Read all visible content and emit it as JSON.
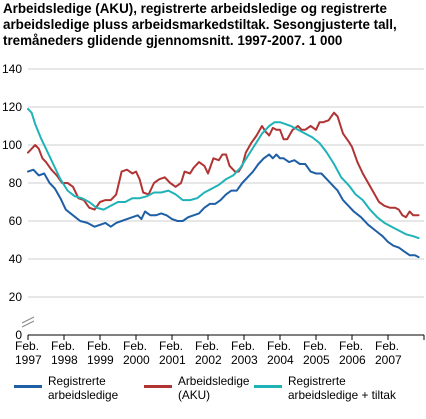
{
  "title_lines": [
    "Arbeidsledige (AKU), registrerte arbeidsledige og registrerte",
    "arbeidsledige pluss arbeidsmarkedstiltak. Sesongjusterte tall,",
    "tremåneders glidende gjennomsnitt. 1997-2007. 1 000"
  ],
  "legend": [
    {
      "lines": [
        "Registrerte",
        "arbeidsledige"
      ]
    },
    {
      "lines": [
        "Arbeidsledige",
        "(AKU)"
      ]
    },
    {
      "lines": [
        "Registrerte",
        "arbeidsledige  + tiltak"
      ]
    }
  ],
  "chart_data": {
    "type": "line",
    "title": "Arbeidsledige (AKU), registrerte arbeidsledige og registrerte arbeidsledige pluss arbeidsmarkedstiltak. Sesongjusterte tall, tremåneders glidende gjennomsnitt. 1997-2007. 1 000",
    "xlabel": "",
    "ylabel": "",
    "ylim": [
      0,
      140
    ],
    "yticks": [
      0,
      20,
      40,
      60,
      80,
      100,
      120,
      140
    ],
    "xlim": [
      1997.0,
      2008.0
    ],
    "xticks": [
      {
        "x": 1997,
        "line1": "Feb.",
        "line2": "1997"
      },
      {
        "x": 1998,
        "line1": "Feb.",
        "line2": "1998"
      },
      {
        "x": 1999,
        "line1": "Feb.",
        "line2": "1999"
      },
      {
        "x": 2000,
        "line1": "Feb.",
        "line2": "2000"
      },
      {
        "x": 2001,
        "line1": "Feb.",
        "line2": "2001"
      },
      {
        "x": 2002,
        "line1": "Feb.",
        "line2": "2002"
      },
      {
        "x": 2003,
        "line1": "Feb.",
        "line2": "2003"
      },
      {
        "x": 2004,
        "line1": "Feb.",
        "line2": "2004"
      },
      {
        "x": 2005,
        "line1": "Feb.",
        "line2": "2005"
      },
      {
        "x": 2006,
        "line1": "Feb.",
        "line2": "2006"
      },
      {
        "x": 2007,
        "line1": "Feb.",
        "line2": "2007"
      }
    ],
    "grid": true,
    "axis_break": true,
    "series": [
      {
        "name": "Registrerte arbeidsledige",
        "color": "#1f5fa6",
        "points": [
          [
            1997.0,
            86
          ],
          [
            1997.15,
            87
          ],
          [
            1997.3,
            84
          ],
          [
            1997.45,
            85
          ],
          [
            1997.6,
            80
          ],
          [
            1997.75,
            77
          ],
          [
            1997.9,
            72
          ],
          [
            1998.05,
            66
          ],
          [
            1998.25,
            63
          ],
          [
            1998.45,
            60
          ],
          [
            1998.65,
            59
          ],
          [
            1998.85,
            57
          ],
          [
            1999.0,
            58
          ],
          [
            1999.15,
            59
          ],
          [
            1999.3,
            57
          ],
          [
            1999.45,
            59
          ],
          [
            1999.6,
            60
          ],
          [
            1999.75,
            61
          ],
          [
            1999.9,
            62
          ],
          [
            2000.05,
            63
          ],
          [
            2000.15,
            61
          ],
          [
            2000.25,
            65
          ],
          [
            2000.4,
            63
          ],
          [
            2000.55,
            63
          ],
          [
            2000.7,
            64
          ],
          [
            2000.85,
            63
          ],
          [
            2001.0,
            61
          ],
          [
            2001.15,
            60
          ],
          [
            2001.3,
            60
          ],
          [
            2001.45,
            62
          ],
          [
            2001.6,
            63
          ],
          [
            2001.75,
            64
          ],
          [
            2001.9,
            67
          ],
          [
            2002.05,
            69
          ],
          [
            2002.2,
            69
          ],
          [
            2002.35,
            71
          ],
          [
            2002.5,
            74
          ],
          [
            2002.65,
            76
          ],
          [
            2002.8,
            76
          ],
          [
            2002.95,
            80
          ],
          [
            2003.1,
            83
          ],
          [
            2003.25,
            86
          ],
          [
            2003.4,
            90
          ],
          [
            2003.55,
            93
          ],
          [
            2003.7,
            95
          ],
          [
            2003.8,
            93
          ],
          [
            2003.9,
            95
          ],
          [
            2004.0,
            93
          ],
          [
            2004.1,
            93
          ],
          [
            2004.25,
            91
          ],
          [
            2004.4,
            92
          ],
          [
            2004.55,
            90
          ],
          [
            2004.7,
            90
          ],
          [
            2004.85,
            86
          ],
          [
            2005.0,
            85
          ],
          [
            2005.15,
            85
          ],
          [
            2005.3,
            82
          ],
          [
            2005.45,
            79
          ],
          [
            2005.6,
            76
          ],
          [
            2005.75,
            71
          ],
          [
            2005.9,
            68
          ],
          [
            2006.05,
            65
          ],
          [
            2006.25,
            62
          ],
          [
            2006.45,
            58
          ],
          [
            2006.65,
            55
          ],
          [
            2006.85,
            52
          ],
          [
            2007.0,
            49
          ],
          [
            2007.15,
            47
          ],
          [
            2007.3,
            46
          ],
          [
            2007.45,
            44
          ],
          [
            2007.6,
            42
          ],
          [
            2007.75,
            42
          ],
          [
            2007.85,
            41
          ]
        ]
      },
      {
        "name": "Arbeidsledige (AKU)",
        "color": "#b03434",
        "points": [
          [
            1997.0,
            96
          ],
          [
            1997.1,
            98
          ],
          [
            1997.2,
            100
          ],
          [
            1997.3,
            98
          ],
          [
            1997.4,
            93
          ],
          [
            1997.5,
            91
          ],
          [
            1997.65,
            87
          ],
          [
            1997.8,
            84
          ],
          [
            1997.95,
            80
          ],
          [
            1998.1,
            80
          ],
          [
            1998.25,
            78
          ],
          [
            1998.4,
            72
          ],
          [
            1998.55,
            71
          ],
          [
            1998.7,
            67
          ],
          [
            1998.85,
            66
          ],
          [
            1999.0,
            70
          ],
          [
            1999.15,
            71
          ],
          [
            1999.3,
            71
          ],
          [
            1999.45,
            74
          ],
          [
            1999.6,
            86
          ],
          [
            1999.75,
            87
          ],
          [
            1999.9,
            85
          ],
          [
            2000.0,
            86
          ],
          [
            2000.1,
            82
          ],
          [
            2000.2,
            75
          ],
          [
            2000.35,
            74
          ],
          [
            2000.5,
            80
          ],
          [
            2000.65,
            82
          ],
          [
            2000.8,
            83
          ],
          [
            2000.95,
            80
          ],
          [
            2001.1,
            78
          ],
          [
            2001.25,
            80
          ],
          [
            2001.35,
            86
          ],
          [
            2001.5,
            85
          ],
          [
            2001.6,
            88
          ],
          [
            2001.75,
            91
          ],
          [
            2001.9,
            89
          ],
          [
            2002.0,
            85
          ],
          [
            2002.15,
            93
          ],
          [
            2002.3,
            92
          ],
          [
            2002.4,
            95
          ],
          [
            2002.5,
            95
          ],
          [
            2002.6,
            89
          ],
          [
            2002.75,
            86
          ],
          [
            2002.85,
            86
          ],
          [
            2002.95,
            89
          ],
          [
            2003.05,
            96
          ],
          [
            2003.2,
            101
          ],
          [
            2003.35,
            105
          ],
          [
            2003.5,
            110
          ],
          [
            2003.6,
            107
          ],
          [
            2003.7,
            105
          ],
          [
            2003.8,
            109
          ],
          [
            2003.9,
            108
          ],
          [
            2004.0,
            108
          ],
          [
            2004.1,
            103
          ],
          [
            2004.2,
            103
          ],
          [
            2004.35,
            108
          ],
          [
            2004.5,
            110
          ],
          [
            2004.6,
            108
          ],
          [
            2004.7,
            108
          ],
          [
            2004.85,
            110
          ],
          [
            2005.0,
            108
          ],
          [
            2005.1,
            112
          ],
          [
            2005.2,
            112
          ],
          [
            2005.35,
            113
          ],
          [
            2005.5,
            117
          ],
          [
            2005.6,
            115
          ],
          [
            2005.75,
            106
          ],
          [
            2005.9,
            102
          ],
          [
            2006.0,
            99
          ],
          [
            2006.15,
            91
          ],
          [
            2006.3,
            85
          ],
          [
            2006.45,
            80
          ],
          [
            2006.6,
            75
          ],
          [
            2006.75,
            70
          ],
          [
            2006.9,
            68
          ],
          [
            2007.05,
            67
          ],
          [
            2007.2,
            67
          ],
          [
            2007.3,
            66
          ],
          [
            2007.4,
            63
          ],
          [
            2007.5,
            62
          ],
          [
            2007.6,
            65
          ],
          [
            2007.7,
            63
          ],
          [
            2007.85,
            63
          ]
        ]
      },
      {
        "name": "Registrerte arbeidsledige  + tiltak",
        "color": "#1fb3b8",
        "points": [
          [
            1997.0,
            119
          ],
          [
            1997.1,
            117
          ],
          [
            1997.2,
            111
          ],
          [
            1997.35,
            104
          ],
          [
            1997.5,
            98
          ],
          [
            1997.7,
            90
          ],
          [
            1997.9,
            82
          ],
          [
            1998.1,
            76
          ],
          [
            1998.3,
            73
          ],
          [
            1998.5,
            72
          ],
          [
            1998.7,
            70
          ],
          [
            1998.9,
            67
          ],
          [
            1999.1,
            66
          ],
          [
            1999.3,
            68
          ],
          [
            1999.5,
            70
          ],
          [
            1999.7,
            70
          ],
          [
            1999.9,
            72
          ],
          [
            2000.1,
            72
          ],
          [
            2000.3,
            73
          ],
          [
            2000.5,
            75
          ],
          [
            2000.7,
            75
          ],
          [
            2000.9,
            76
          ],
          [
            2001.1,
            74
          ],
          [
            2001.3,
            71
          ],
          [
            2001.5,
            71
          ],
          [
            2001.7,
            72
          ],
          [
            2001.9,
            75
          ],
          [
            2002.1,
            77
          ],
          [
            2002.3,
            79
          ],
          [
            2002.5,
            82
          ],
          [
            2002.7,
            84
          ],
          [
            2002.9,
            88
          ],
          [
            2003.1,
            94
          ],
          [
            2003.3,
            100
          ],
          [
            2003.5,
            106
          ],
          [
            2003.7,
            110
          ],
          [
            2003.85,
            112
          ],
          [
            2004.0,
            112
          ],
          [
            2004.15,
            111
          ],
          [
            2004.3,
            110
          ],
          [
            2004.5,
            108
          ],
          [
            2004.7,
            106
          ],
          [
            2004.9,
            104
          ],
          [
            2005.1,
            101
          ],
          [
            2005.3,
            96
          ],
          [
            2005.5,
            90
          ],
          [
            2005.7,
            83
          ],
          [
            2005.9,
            79
          ],
          [
            2006.1,
            74
          ],
          [
            2006.3,
            71
          ],
          [
            2006.5,
            66
          ],
          [
            2006.7,
            62
          ],
          [
            2006.9,
            59
          ],
          [
            2007.1,
            57
          ],
          [
            2007.3,
            55
          ],
          [
            2007.5,
            53
          ],
          [
            2007.7,
            52
          ],
          [
            2007.85,
            51
          ]
        ]
      }
    ]
  }
}
